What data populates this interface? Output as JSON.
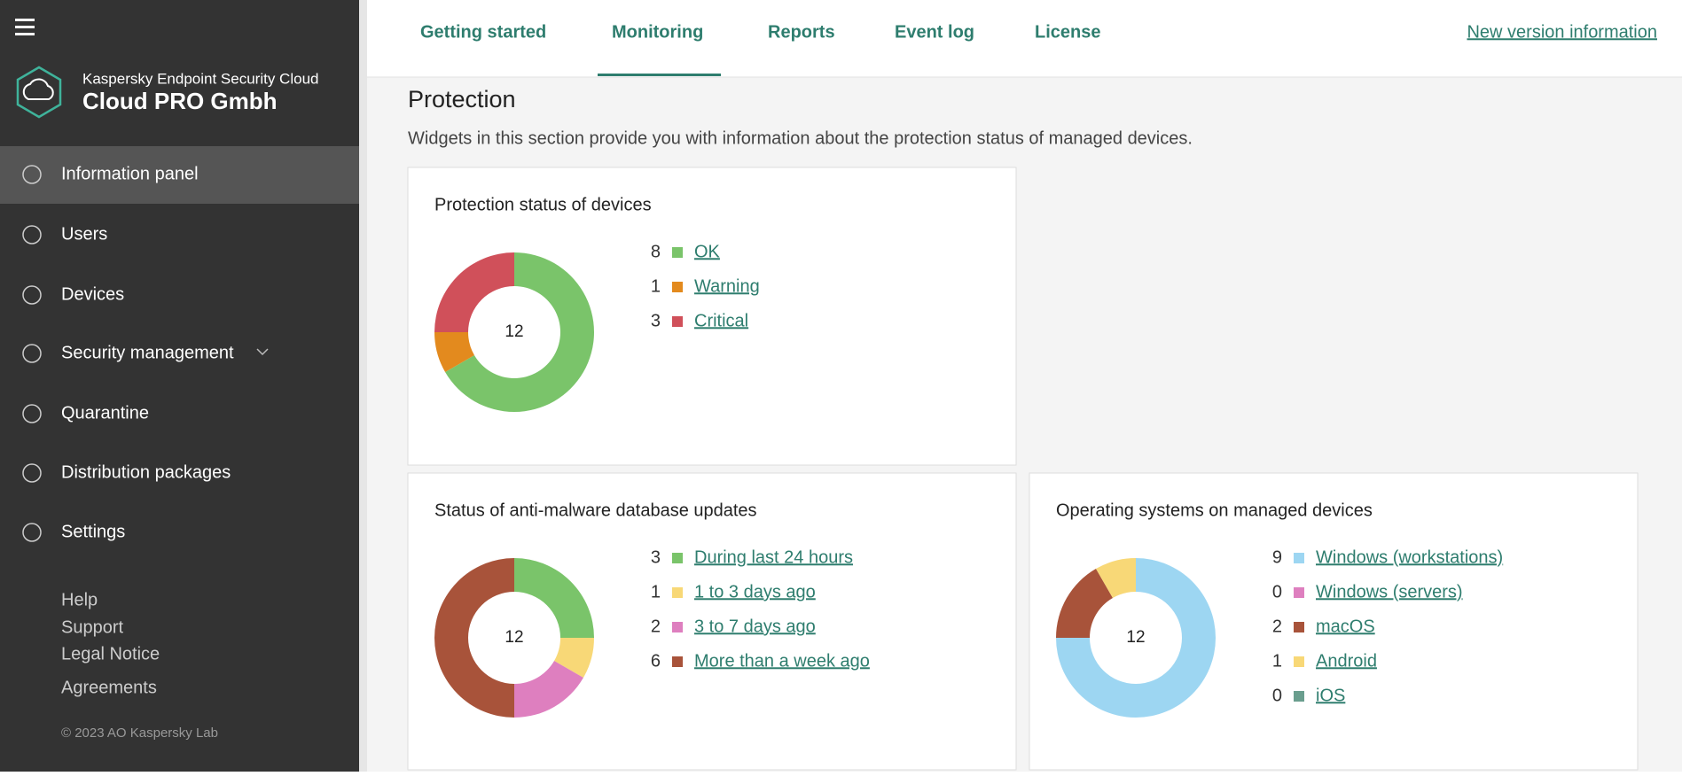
{
  "nav": {
    "tabs": [
      "Getting started",
      "Monitoring",
      "Reports",
      "Event log",
      "License"
    ],
    "new_version": "New version information"
  },
  "sidebar": {
    "product": "Kaspersky Endpoint Security Cloud",
    "company": "Cloud PRO Gmbh",
    "menu": [
      "Information panel",
      "Users",
      "Devices",
      "Security management",
      "Quarantine",
      "Distribution packages",
      "Settings"
    ],
    "links": [
      "Help",
      "Support",
      "Legal Notice",
      "Agreements"
    ],
    "copyright": "© 2023 AO Kaspersky Lab"
  },
  "section": {
    "title": "Protection",
    "description": "Widgets in this section provide you with information about the protection status of managed devices."
  },
  "widgets": [
    {
      "title": "Protection status of devices",
      "total": 12,
      "items": [
        {
          "count": 8,
          "label": "OK",
          "color": "#7ac46a"
        },
        {
          "count": 1,
          "label": "Warning",
          "color": "#e38a1e"
        },
        {
          "count": 3,
          "label": "Critical",
          "color": "#d0505a"
        }
      ]
    },
    {
      "title": "Status of anti-malware database updates",
      "total": 12,
      "items": [
        {
          "count": 3,
          "label": "During last 24 hours",
          "color": "#7ac46a"
        },
        {
          "count": 1,
          "label": "1 to 3 days ago",
          "color": "#f8d877"
        },
        {
          "count": 2,
          "label": "3 to 7 days ago",
          "color": "#de7fbf"
        },
        {
          "count": 6,
          "label": "More than a week ago",
          "color": "#a8533a"
        }
      ]
    },
    {
      "title": "Operating systems on managed devices",
      "total": 12,
      "items": [
        {
          "count": 9,
          "label": "Windows (workstations)",
          "color": "#9dd6f2"
        },
        {
          "count": 0,
          "label": "Windows (servers)",
          "color": "#de7fbf"
        },
        {
          "count": 2,
          "label": "macOS",
          "color": "#a8533a"
        },
        {
          "count": 1,
          "label": "Android",
          "color": "#f8d877"
        },
        {
          "count": 0,
          "label": "iOS",
          "color": "#6a9e8e"
        }
      ]
    }
  ]
}
